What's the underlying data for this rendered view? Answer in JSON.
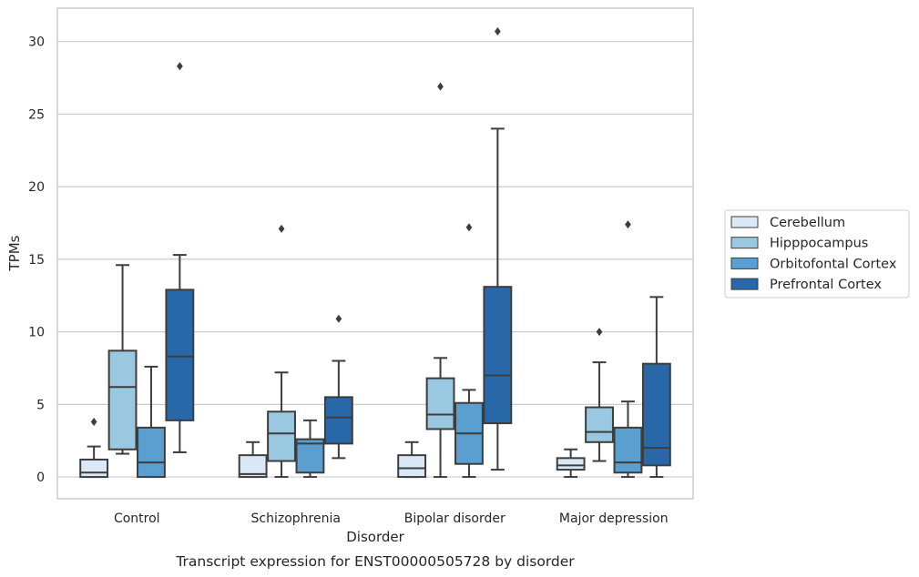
{
  "chart_data": {
    "type": "box",
    "xlabel": "Disorder",
    "ylabel": "TPMs",
    "caption": "Transcript expression for ENST00000505728 by disorder",
    "ylim": [
      -1.5,
      32.3
    ],
    "yticks": [
      "0",
      "5",
      "10",
      "15",
      "20",
      "25",
      "30"
    ],
    "ytick_values": [
      0,
      5,
      10,
      15,
      20,
      25,
      30
    ],
    "grid": "horizontal",
    "legend_position": "right",
    "categories": [
      "Control",
      "Schizophrenia",
      "Bipolar disorder",
      "Major depression"
    ],
    "series": [
      {
        "name": "Cerebellum",
        "color": "#dbe9f6",
        "boxes": [
          {
            "whisker_low": 0.0,
            "q1": 0.0,
            "median": 0.3,
            "q3": 1.2,
            "whisker_high": 2.1,
            "outliers": [
              3.8
            ]
          },
          {
            "whisker_low": 0.0,
            "q1": 0.0,
            "median": 0.2,
            "q3": 1.5,
            "whisker_high": 2.4,
            "outliers": []
          },
          {
            "whisker_low": 0.0,
            "q1": 0.0,
            "median": 0.6,
            "q3": 1.5,
            "whisker_high": 2.4,
            "outliers": []
          },
          {
            "whisker_low": 0.0,
            "q1": 0.5,
            "median": 0.8,
            "q3": 1.3,
            "whisker_high": 1.9,
            "outliers": []
          }
        ]
      },
      {
        "name": "Hipppocampus",
        "color": "#9ac8e0",
        "boxes": [
          {
            "whisker_low": 1.6,
            "q1": 1.9,
            "median": 6.2,
            "q3": 8.7,
            "whisker_high": 14.6,
            "outliers": []
          },
          {
            "whisker_low": 0.0,
            "q1": 1.1,
            "median": 3.0,
            "q3": 4.5,
            "whisker_high": 7.2,
            "outliers": [
              17.1
            ]
          },
          {
            "whisker_low": 0.0,
            "q1": 3.3,
            "median": 4.3,
            "q3": 6.8,
            "whisker_high": 8.2,
            "outliers": [
              26.9
            ]
          },
          {
            "whisker_low": 1.1,
            "q1": 2.4,
            "median": 3.1,
            "q3": 4.8,
            "whisker_high": 7.9,
            "outliers": [
              10.0
            ]
          }
        ]
      },
      {
        "name": "Orbitofontal Cortex",
        "color": "#5a9fcf",
        "boxes": [
          {
            "whisker_low": 0.0,
            "q1": 0.0,
            "median": 1.0,
            "q3": 3.4,
            "whisker_high": 7.6,
            "outliers": []
          },
          {
            "whisker_low": 0.0,
            "q1": 0.3,
            "median": 2.3,
            "q3": 2.6,
            "whisker_high": 3.9,
            "outliers": []
          },
          {
            "whisker_low": 0.0,
            "q1": 0.9,
            "median": 3.0,
            "q3": 5.1,
            "whisker_high": 6.0,
            "outliers": [
              17.2
            ]
          },
          {
            "whisker_low": 0.0,
            "q1": 0.3,
            "median": 1.0,
            "q3": 3.4,
            "whisker_high": 5.2,
            "outliers": [
              17.4
            ]
          }
        ]
      },
      {
        "name": "Prefrontal Cortex",
        "color": "#2868a9",
        "boxes": [
          {
            "whisker_low": 1.7,
            "q1": 3.9,
            "median": 8.3,
            "q3": 12.9,
            "whisker_high": 15.3,
            "outliers": [
              28.3
            ]
          },
          {
            "whisker_low": 1.3,
            "q1": 2.3,
            "median": 4.1,
            "q3": 5.5,
            "whisker_high": 8.0,
            "outliers": [
              10.9
            ]
          },
          {
            "whisker_low": 0.5,
            "q1": 3.7,
            "median": 7.0,
            "q3": 13.1,
            "whisker_high": 24.0,
            "outliers": [
              30.7
            ]
          },
          {
            "whisker_low": 0.0,
            "q1": 0.8,
            "median": 2.0,
            "q3": 7.8,
            "whisker_high": 12.4,
            "outliers": []
          }
        ]
      }
    ]
  }
}
